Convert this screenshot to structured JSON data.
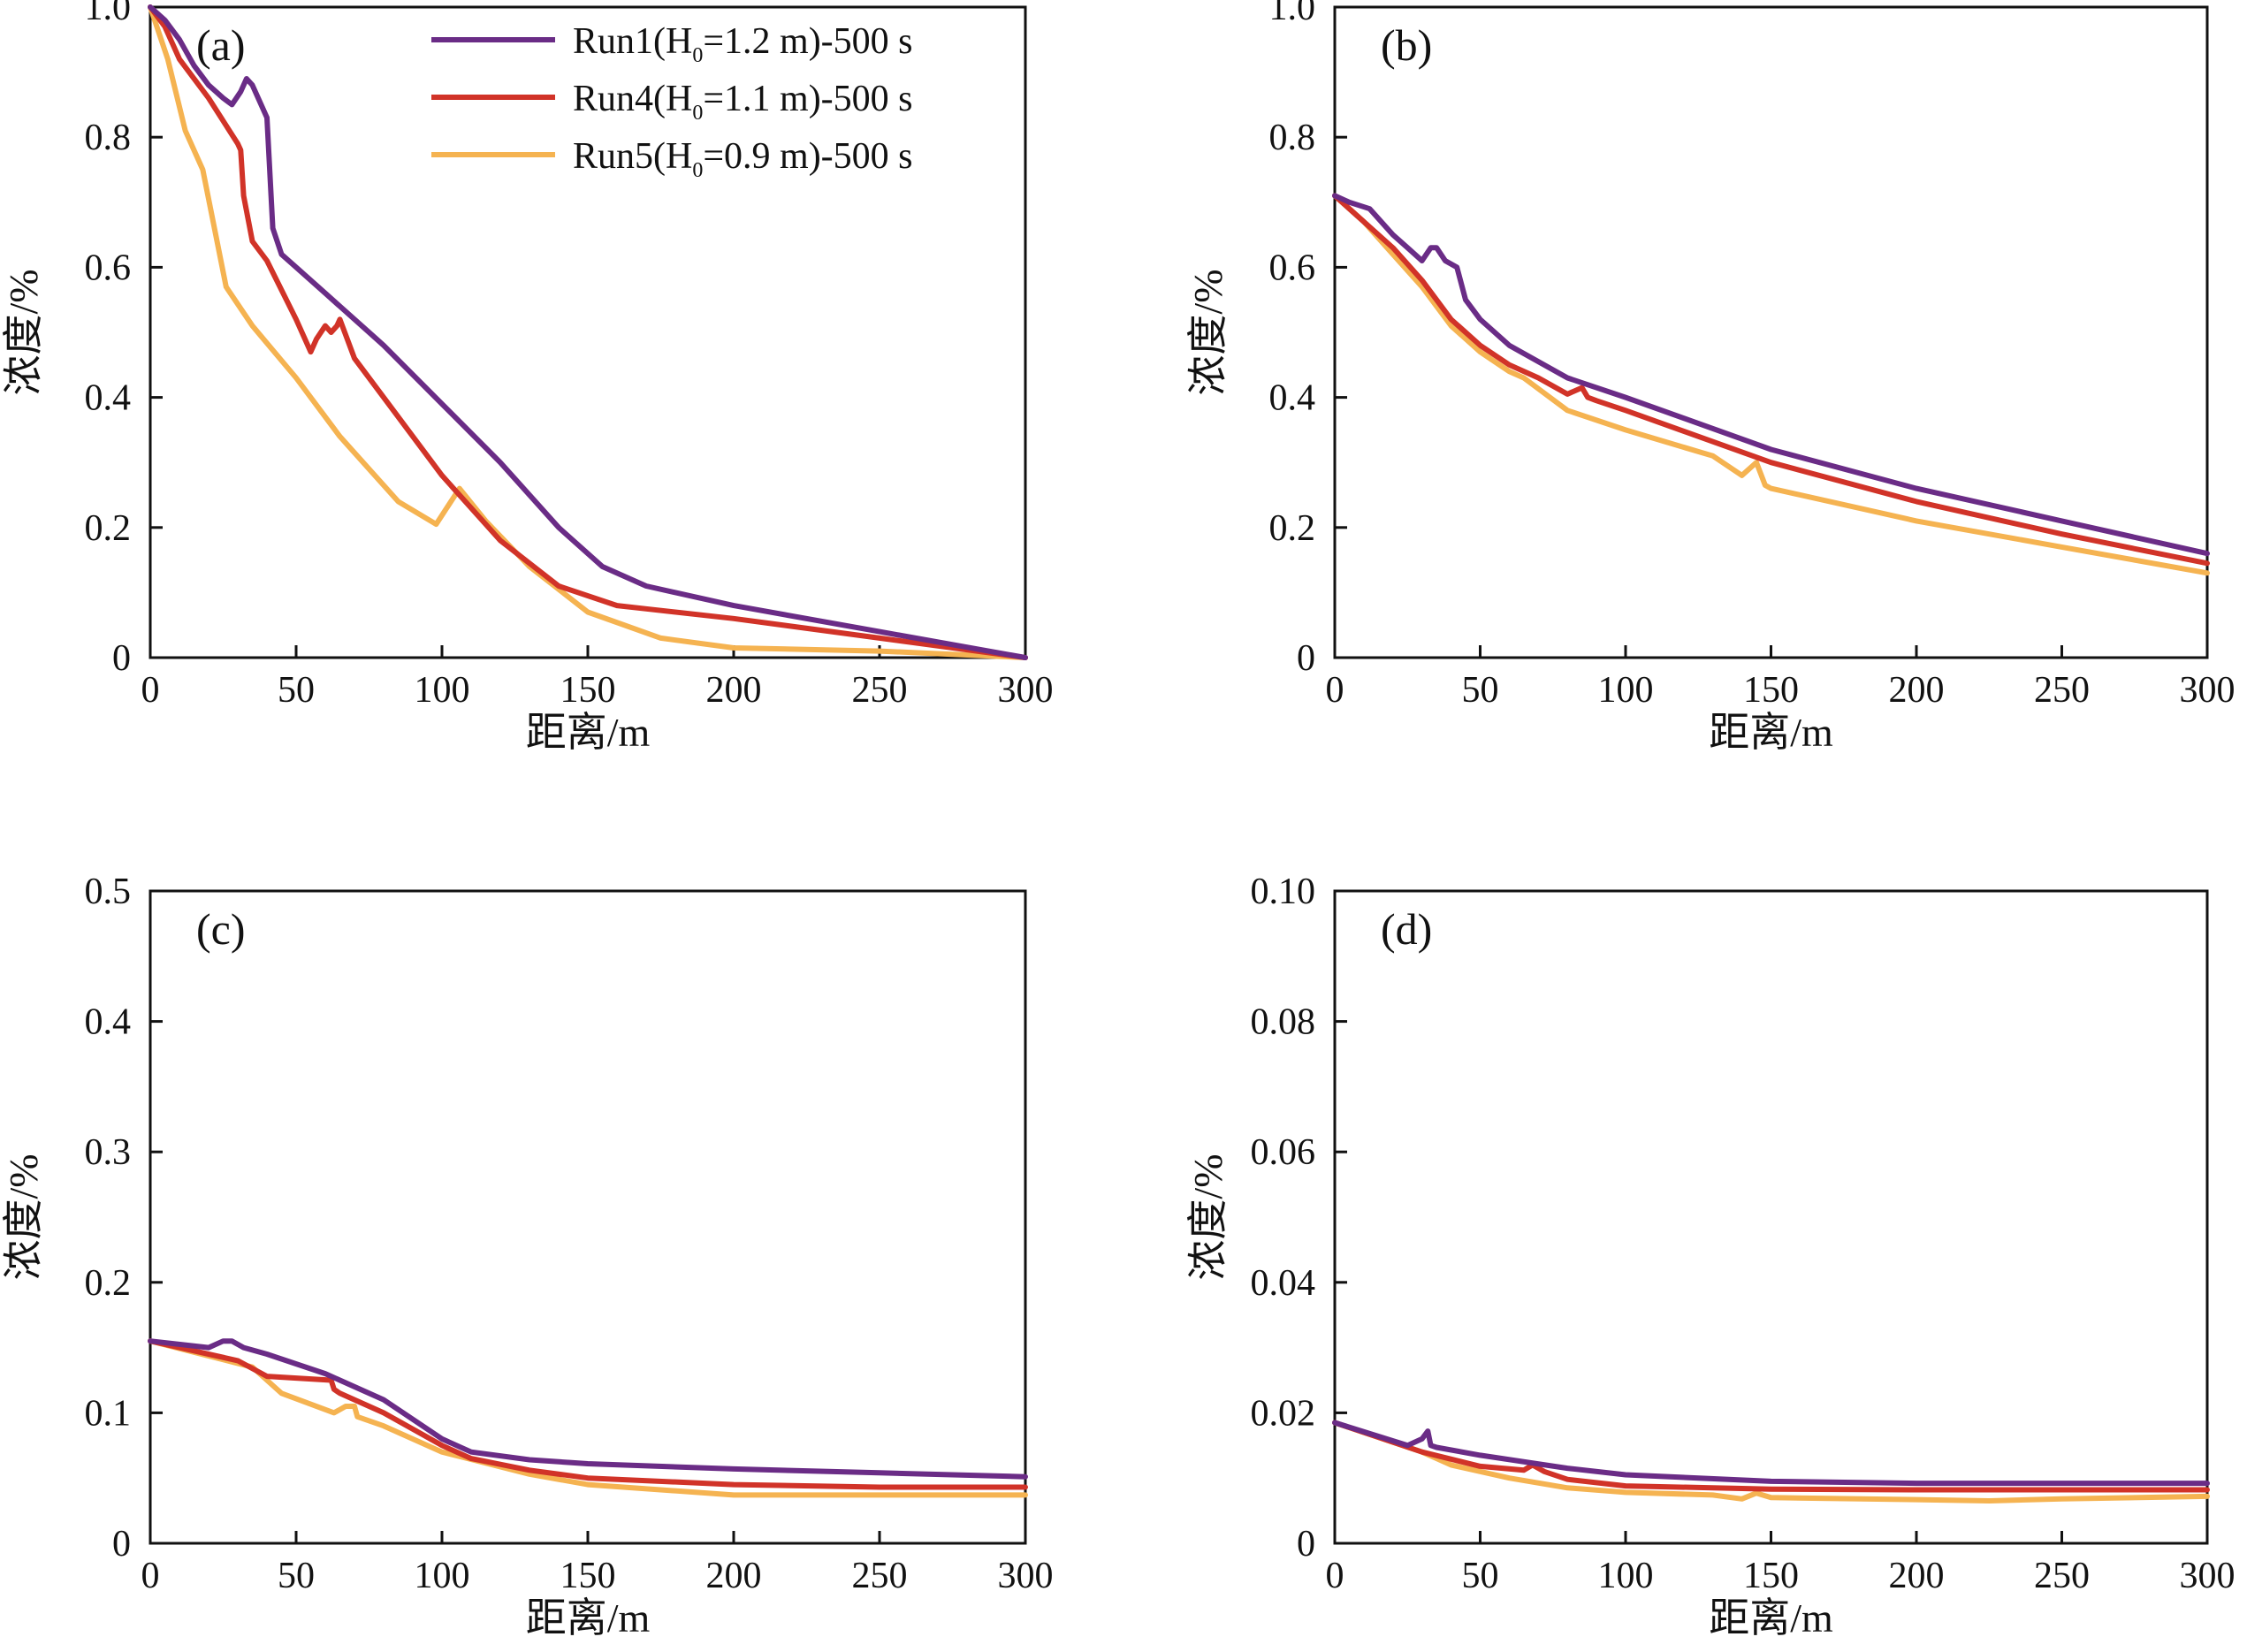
{
  "colors": {
    "Run1": "#6a2c86",
    "Run4": "#d13328",
    "Run5": "#f5b351"
  },
  "legend": [
    {
      "series": "Run1",
      "prefix": "Run1(H",
      "sub": "0",
      "suffix": "=1.2 m)-500 s"
    },
    {
      "series": "Run4",
      "prefix": "Run4(H",
      "sub": "0",
      "suffix": "=1.1 m)-500 s"
    },
    {
      "series": "Run5",
      "prefix": "Run5(H",
      "sub": "0",
      "suffix": "=0.9 m)-500 s"
    }
  ],
  "chart_data": [
    {
      "type": "line",
      "panel_label": "(a)",
      "xlabel": "距离/m",
      "ylabel": "浓度/%",
      "xlim": [
        0,
        300
      ],
      "ylim": [
        0,
        1.0
      ],
      "xticks": [
        "0",
        "50",
        "100",
        "150",
        "200",
        "250",
        "300"
      ],
      "yticks": [
        "0",
        "0.2",
        "0.4",
        "0.6",
        "0.8",
        "1.0"
      ],
      "legend_position": "top-right",
      "series": [
        {
          "name": "Run1",
          "x": [
            0,
            5,
            10,
            15,
            20,
            25,
            28,
            31,
            33,
            35,
            38,
            40,
            42,
            45,
            50,
            60,
            80,
            100,
            120,
            140,
            155,
            170,
            200,
            250,
            300
          ],
          "y": [
            1.0,
            0.98,
            0.95,
            0.91,
            0.88,
            0.86,
            0.85,
            0.87,
            0.89,
            0.88,
            0.85,
            0.83,
            0.66,
            0.62,
            0.6,
            0.56,
            0.48,
            0.39,
            0.3,
            0.2,
            0.14,
            0.11,
            0.08,
            0.04,
            0.0
          ]
        },
        {
          "name": "Run4",
          "x": [
            0,
            5,
            10,
            20,
            30,
            31,
            32,
            35,
            40,
            50,
            55,
            57,
            60,
            62,
            64,
            65,
            70,
            80,
            100,
            120,
            140,
            160,
            170,
            200,
            250,
            300
          ],
          "y": [
            1.0,
            0.97,
            0.92,
            0.86,
            0.79,
            0.78,
            0.71,
            0.64,
            0.61,
            0.52,
            0.47,
            0.49,
            0.51,
            0.5,
            0.51,
            0.52,
            0.46,
            0.4,
            0.28,
            0.18,
            0.11,
            0.08,
            0.075,
            0.06,
            0.03,
            0.0
          ]
        },
        {
          "name": "Run5",
          "x": [
            0,
            6,
            12,
            18,
            26,
            35,
            50,
            65,
            85,
            98,
            106,
            115,
            130,
            150,
            175,
            200,
            250,
            300
          ],
          "y": [
            1.0,
            0.92,
            0.81,
            0.75,
            0.57,
            0.51,
            0.43,
            0.34,
            0.24,
            0.205,
            0.26,
            0.21,
            0.14,
            0.07,
            0.03,
            0.015,
            0.01,
            0.0
          ]
        }
      ]
    },
    {
      "type": "line",
      "panel_label": "(b)",
      "xlabel": "距离/m",
      "ylabel": "浓度/%",
      "xlim": [
        0,
        300
      ],
      "ylim": [
        0,
        1.0
      ],
      "xticks": [
        "0",
        "50",
        "100",
        "150",
        "200",
        "250",
        "300"
      ],
      "yticks": [
        "0",
        "0.2",
        "0.4",
        "0.6",
        "0.8",
        "1.0"
      ],
      "series": [
        {
          "name": "Run1",
          "x": [
            0,
            5,
            12,
            16,
            20,
            25,
            30,
            33,
            35,
            38,
            42,
            45,
            50,
            60,
            80,
            100,
            150,
            200,
            250,
            300
          ],
          "y": [
            0.71,
            0.7,
            0.69,
            0.67,
            0.65,
            0.63,
            0.61,
            0.63,
            0.63,
            0.61,
            0.6,
            0.55,
            0.52,
            0.48,
            0.43,
            0.4,
            0.32,
            0.26,
            0.21,
            0.16
          ]
        },
        {
          "name": "Run4",
          "x": [
            0,
            10,
            20,
            30,
            40,
            50,
            60,
            70,
            80,
            85,
            87,
            90,
            100,
            150,
            200,
            250,
            300
          ],
          "y": [
            0.71,
            0.67,
            0.63,
            0.58,
            0.52,
            0.48,
            0.45,
            0.43,
            0.405,
            0.415,
            0.4,
            0.395,
            0.38,
            0.3,
            0.24,
            0.19,
            0.145
          ]
        },
        {
          "name": "Run5",
          "x": [
            0,
            10,
            20,
            30,
            40,
            50,
            60,
            65,
            80,
            100,
            130,
            140,
            145,
            148,
            150,
            200,
            250,
            300
          ],
          "y": [
            0.71,
            0.67,
            0.62,
            0.57,
            0.51,
            0.47,
            0.44,
            0.43,
            0.38,
            0.35,
            0.31,
            0.28,
            0.3,
            0.265,
            0.26,
            0.21,
            0.17,
            0.13
          ]
        }
      ]
    },
    {
      "type": "line",
      "panel_label": "(c)",
      "xlabel": "距离/m",
      "ylabel": "浓度/%",
      "xlim": [
        0,
        300
      ],
      "ylim": [
        0,
        0.5
      ],
      "xticks": [
        "0",
        "50",
        "100",
        "150",
        "200",
        "250",
        "300"
      ],
      "yticks": [
        "0",
        "0.1",
        "0.2",
        "0.3",
        "0.4",
        "0.5"
      ],
      "series": [
        {
          "name": "Run1",
          "x": [
            0,
            20,
            25,
            28,
            32,
            40,
            60,
            80,
            100,
            110,
            130,
            150,
            200,
            250,
            300
          ],
          "y": [
            0.155,
            0.15,
            0.155,
            0.155,
            0.15,
            0.145,
            0.13,
            0.11,
            0.08,
            0.07,
            0.064,
            0.061,
            0.057,
            0.054,
            0.051
          ]
        },
        {
          "name": "Run4",
          "x": [
            0,
            30,
            40,
            62,
            63,
            65,
            80,
            100,
            110,
            130,
            150,
            200,
            250,
            300
          ],
          "y": [
            0.155,
            0.14,
            0.128,
            0.125,
            0.118,
            0.115,
            0.1,
            0.075,
            0.065,
            0.056,
            0.05,
            0.045,
            0.043,
            0.043
          ]
        },
        {
          "name": "Run5",
          "x": [
            0,
            35,
            45,
            63,
            67,
            70,
            71,
            80,
            100,
            130,
            150,
            200,
            250,
            300
          ],
          "y": [
            0.155,
            0.135,
            0.115,
            0.1,
            0.105,
            0.105,
            0.097,
            0.09,
            0.07,
            0.053,
            0.045,
            0.037,
            0.037,
            0.037
          ]
        }
      ]
    },
    {
      "type": "line",
      "panel_label": "(d)",
      "xlabel": "距离/m",
      "ylabel": "浓度/%",
      "xlim": [
        0,
        300
      ],
      "ylim": [
        0,
        0.1
      ],
      "xticks": [
        "0",
        "50",
        "100",
        "150",
        "200",
        "250",
        "300"
      ],
      "yticks": [
        "0",
        "0.02",
        "0.04",
        "0.06",
        "0.08",
        "0.10"
      ],
      "series": [
        {
          "name": "Run1",
          "x": [
            0,
            25,
            30,
            32,
            33,
            35,
            50,
            80,
            100,
            150,
            200,
            250,
            300
          ],
          "y": [
            0.0185,
            0.015,
            0.016,
            0.0172,
            0.015,
            0.0147,
            0.0135,
            0.0115,
            0.0105,
            0.0095,
            0.0092,
            0.0092,
            0.0092
          ]
        },
        {
          "name": "Run4",
          "x": [
            0,
            30,
            50,
            65,
            68,
            72,
            80,
            100,
            150,
            200,
            250,
            300
          ],
          "y": [
            0.0185,
            0.014,
            0.0118,
            0.0112,
            0.012,
            0.011,
            0.0098,
            0.0088,
            0.0083,
            0.0082,
            0.0082,
            0.0082
          ]
        },
        {
          "name": "Run5",
          "x": [
            0,
            30,
            40,
            60,
            80,
            100,
            130,
            140,
            145,
            150,
            200,
            225,
            250,
            300
          ],
          "y": [
            0.0185,
            0.014,
            0.012,
            0.01,
            0.0085,
            0.0078,
            0.0074,
            0.0068,
            0.0077,
            0.007,
            0.0067,
            0.0065,
            0.0068,
            0.0072
          ]
        }
      ]
    }
  ]
}
